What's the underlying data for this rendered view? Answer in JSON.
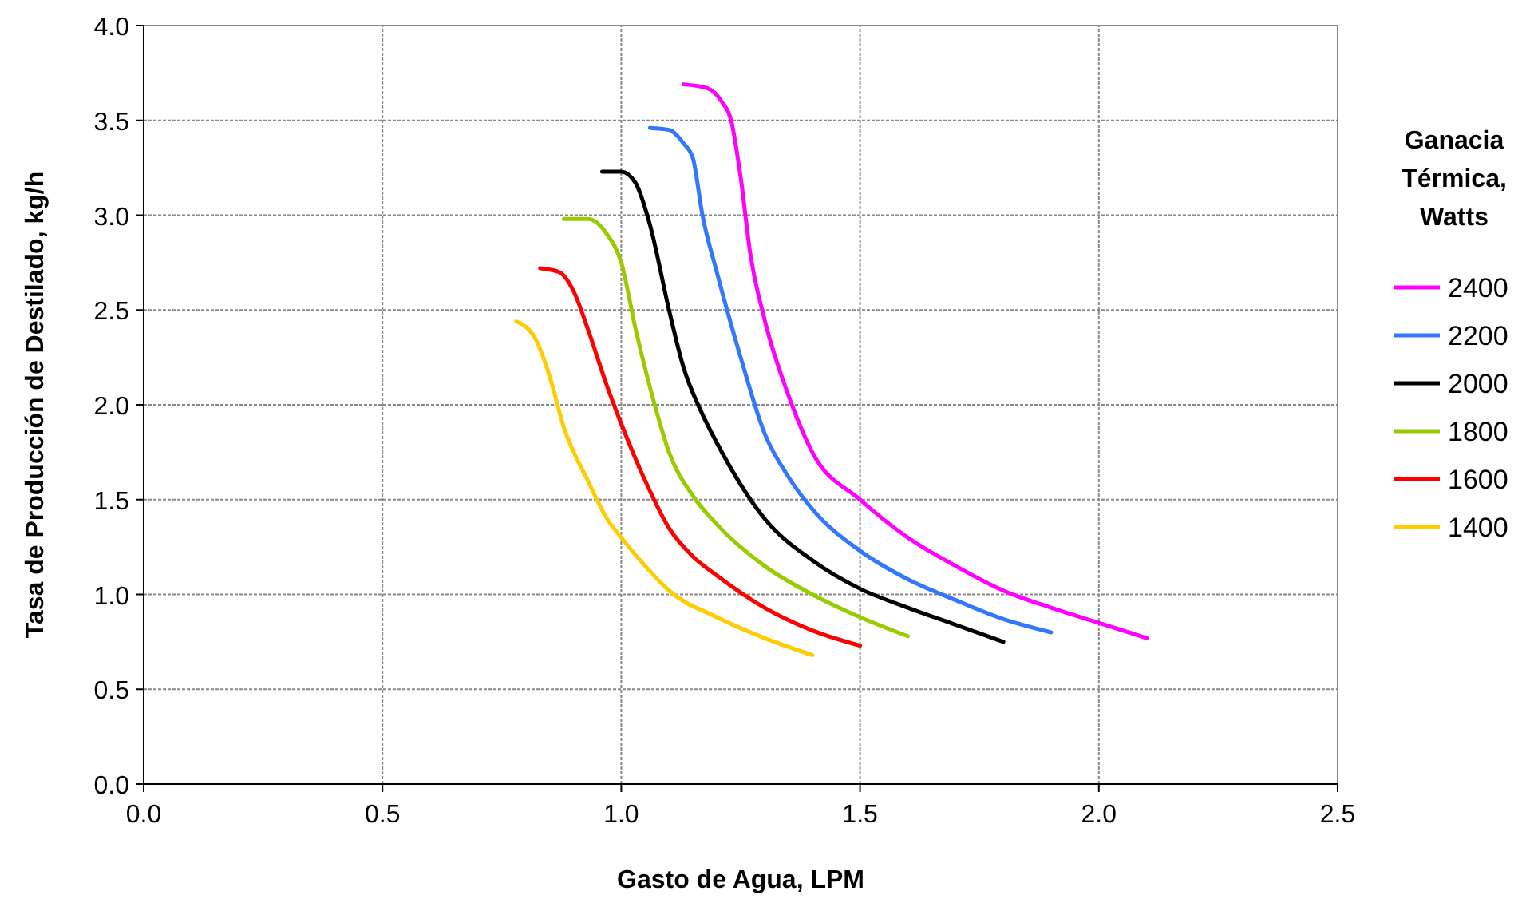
{
  "chart_data": {
    "type": "line",
    "xlabel": "Gasto de Agua, LPM",
    "ylabel": "Tasa de Producción de Destilado, kg/h",
    "legend_title": "Ganacia Térmica, Watts",
    "legend": "right",
    "grid": true,
    "marker": "none",
    "line_style": "solid",
    "xlim": [
      0,
      2.5
    ],
    "xticks": [
      {
        "value": 0,
        "label": "0.0"
      },
      {
        "value": 0.5,
        "label": "0.5"
      },
      {
        "value": 1,
        "label": "1.0"
      },
      {
        "value": 1.5,
        "label": "1.5"
      },
      {
        "value": 2,
        "label": "2.0"
      },
      {
        "value": 2.5,
        "label": "2.5"
      }
    ],
    "ylim": [
      0,
      4
    ],
    "yticks": [
      {
        "value": 0,
        "label": "0.0"
      },
      {
        "value": 0.5,
        "label": "0.5"
      },
      {
        "value": 1,
        "label": "1.0"
      },
      {
        "value": 1.5,
        "label": "1.5"
      },
      {
        "value": 2,
        "label": "2.0"
      },
      {
        "value": 2.5,
        "label": "2.5"
      },
      {
        "value": 3,
        "label": "3.0"
      },
      {
        "value": 3.5,
        "label": "3.5"
      },
      {
        "value": 4,
        "label": "4.0"
      }
    ],
    "series": [
      {
        "name": "2400",
        "color": "#ff00ff",
        "x": [
          1.13,
          1.18,
          1.21,
          1.23,
          1.25,
          1.27,
          1.3,
          1.35,
          1.4,
          1.5,
          1.6,
          1.7,
          1.8,
          1.9,
          2.0,
          2.1
        ],
        "values": [
          3.69,
          3.67,
          3.6,
          3.5,
          3.2,
          2.8,
          2.45,
          2.05,
          1.75,
          1.5,
          1.3,
          1.15,
          1.02,
          0.93,
          0.85,
          0.77
        ]
      },
      {
        "name": "2200",
        "color": "#3377ff",
        "x": [
          1.06,
          1.1,
          1.13,
          1.15,
          1.17,
          1.2,
          1.25,
          1.3,
          1.35,
          1.4,
          1.5,
          1.6,
          1.7,
          1.8,
          1.9
        ],
        "values": [
          3.46,
          3.45,
          3.38,
          3.3,
          3.0,
          2.7,
          2.25,
          1.85,
          1.62,
          1.45,
          1.23,
          1.08,
          0.97,
          0.87,
          0.8
        ]
      },
      {
        "name": "2000",
        "color": "#000000",
        "x": [
          0.96,
          1.0,
          1.03,
          1.06,
          1.1,
          1.13,
          1.17,
          1.2,
          1.3,
          1.4,
          1.5,
          1.6,
          1.7,
          1.8
        ],
        "values": [
          3.23,
          3.23,
          3.17,
          2.95,
          2.5,
          2.2,
          1.95,
          1.8,
          1.4,
          1.18,
          1.03,
          0.93,
          0.84,
          0.75
        ]
      },
      {
        "name": "1800",
        "color": "#99cc00",
        "x": [
          0.88,
          0.93,
          0.97,
          1.0,
          1.03,
          1.07,
          1.1,
          1.15,
          1.2,
          1.3,
          1.4,
          1.5,
          1.6
        ],
        "values": [
          2.98,
          2.98,
          2.9,
          2.75,
          2.4,
          2.0,
          1.75,
          1.52,
          1.37,
          1.15,
          1.0,
          0.88,
          0.78
        ]
      },
      {
        "name": "1600",
        "color": "#ff0000",
        "x": [
          0.83,
          0.87,
          0.9,
          0.93,
          0.97,
          1.0,
          1.05,
          1.1,
          1.15,
          1.2,
          1.3,
          1.4,
          1.5
        ],
        "values": [
          2.72,
          2.7,
          2.6,
          2.4,
          2.1,
          1.9,
          1.6,
          1.35,
          1.2,
          1.1,
          0.93,
          0.81,
          0.73
        ]
      },
      {
        "name": "1400",
        "color": "#ffcc00",
        "x": [
          0.78,
          0.82,
          0.85,
          0.88,
          0.93,
          0.97,
          1.0,
          1.05,
          1.1,
          1.2,
          1.3,
          1.4
        ],
        "values": [
          2.44,
          2.35,
          2.15,
          1.88,
          1.6,
          1.4,
          1.3,
          1.15,
          1.02,
          0.88,
          0.77,
          0.68
        ]
      }
    ]
  }
}
